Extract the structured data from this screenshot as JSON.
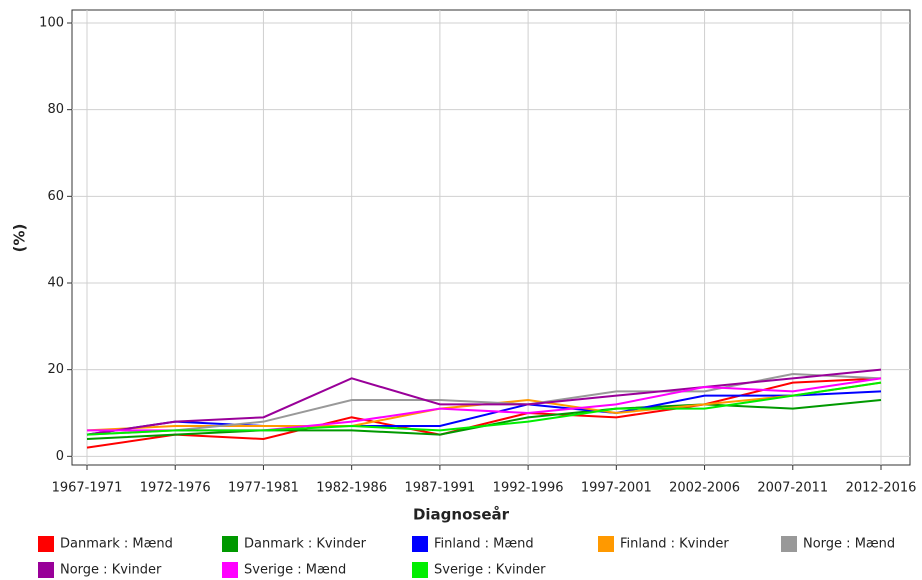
{
  "chart_data": {
    "type": "line",
    "x_label": "Diagnoseår",
    "y_label": "(%)",
    "categories": [
      "1967-1971",
      "1972-1976",
      "1977-1981",
      "1982-1986",
      "1987-1991",
      "1992-1996",
      "1997-2001",
      "2002-2006",
      "2007-2011",
      "2012-2016"
    ],
    "series": [
      {
        "name": "Danmark : Mænd",
        "color": "#ff0000",
        "values": [
          2,
          5,
          4,
          9,
          5,
          10,
          9,
          12,
          17,
          18
        ]
      },
      {
        "name": "Danmark : Kvinder",
        "color": "#009900",
        "values": [
          4,
          5,
          6,
          6,
          5,
          9,
          11,
          12,
          11,
          13
        ]
      },
      {
        "name": "Finland : Mænd",
        "color": "#0000ff",
        "values": [
          5,
          8,
          7,
          7,
          7,
          12,
          10,
          14,
          14,
          15
        ]
      },
      {
        "name": "Finland : Kvinder",
        "color": "#ff9900",
        "values": [
          6,
          7,
          7,
          7,
          11,
          13,
          10,
          12,
          14,
          17
        ]
      },
      {
        "name": "Norge : Mænd",
        "color": "#999999",
        "values": [
          5,
          6,
          8,
          13,
          13,
          12,
          15,
          15,
          19,
          18
        ]
      },
      {
        "name": "Norge : Kvinder",
        "color": "#990099",
        "values": [
          5,
          8,
          9,
          18,
          12,
          12,
          14,
          16,
          18,
          20
        ]
      },
      {
        "name": "Sverige : Mænd",
        "color": "#ff00ff",
        "values": [
          6,
          6,
          6,
          8,
          11,
          10,
          12,
          16,
          15,
          18
        ]
      },
      {
        "name": "Sverige : Kvinder",
        "color": "#00ee00",
        "values": [
          5,
          6,
          6,
          7,
          6,
          8,
          11,
          11,
          14,
          17
        ]
      }
    ],
    "ylim": [
      -2,
      103
    ],
    "yticks": [
      0,
      20,
      40,
      60,
      80,
      100
    ],
    "grid": true
  }
}
